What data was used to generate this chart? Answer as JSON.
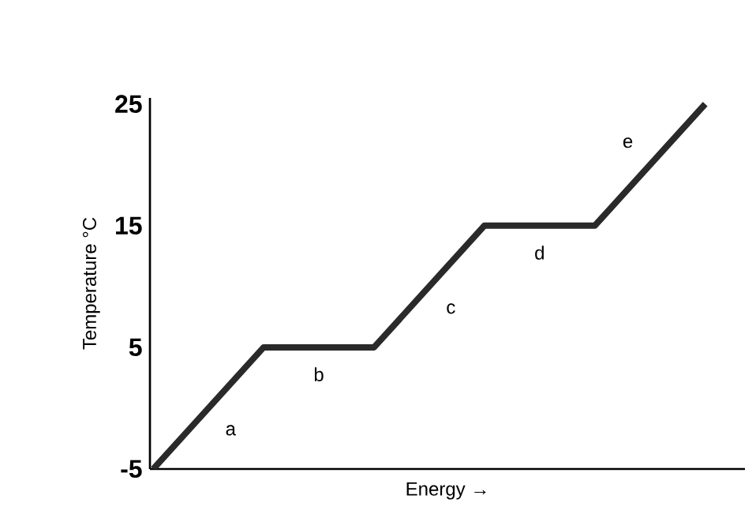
{
  "chart_data": {
    "type": "line",
    "xlabel": "Energy →",
    "ylabel": "Temperature °C",
    "categories": [
      null,
      null,
      null,
      null,
      null,
      null
    ],
    "values": [
      -5,
      5,
      5,
      15,
      15,
      25
    ],
    "color": "#2a2a2a",
    "ylim": [
      -5,
      25.5
    ],
    "yticks": [
      -5,
      5,
      15,
      25
    ],
    "grid": false,
    "marker": "none",
    "line_style": "solid",
    "tick_labels": "y",
    "annotations": [
      "a",
      "b",
      "c",
      "d",
      "e"
    ]
  }
}
